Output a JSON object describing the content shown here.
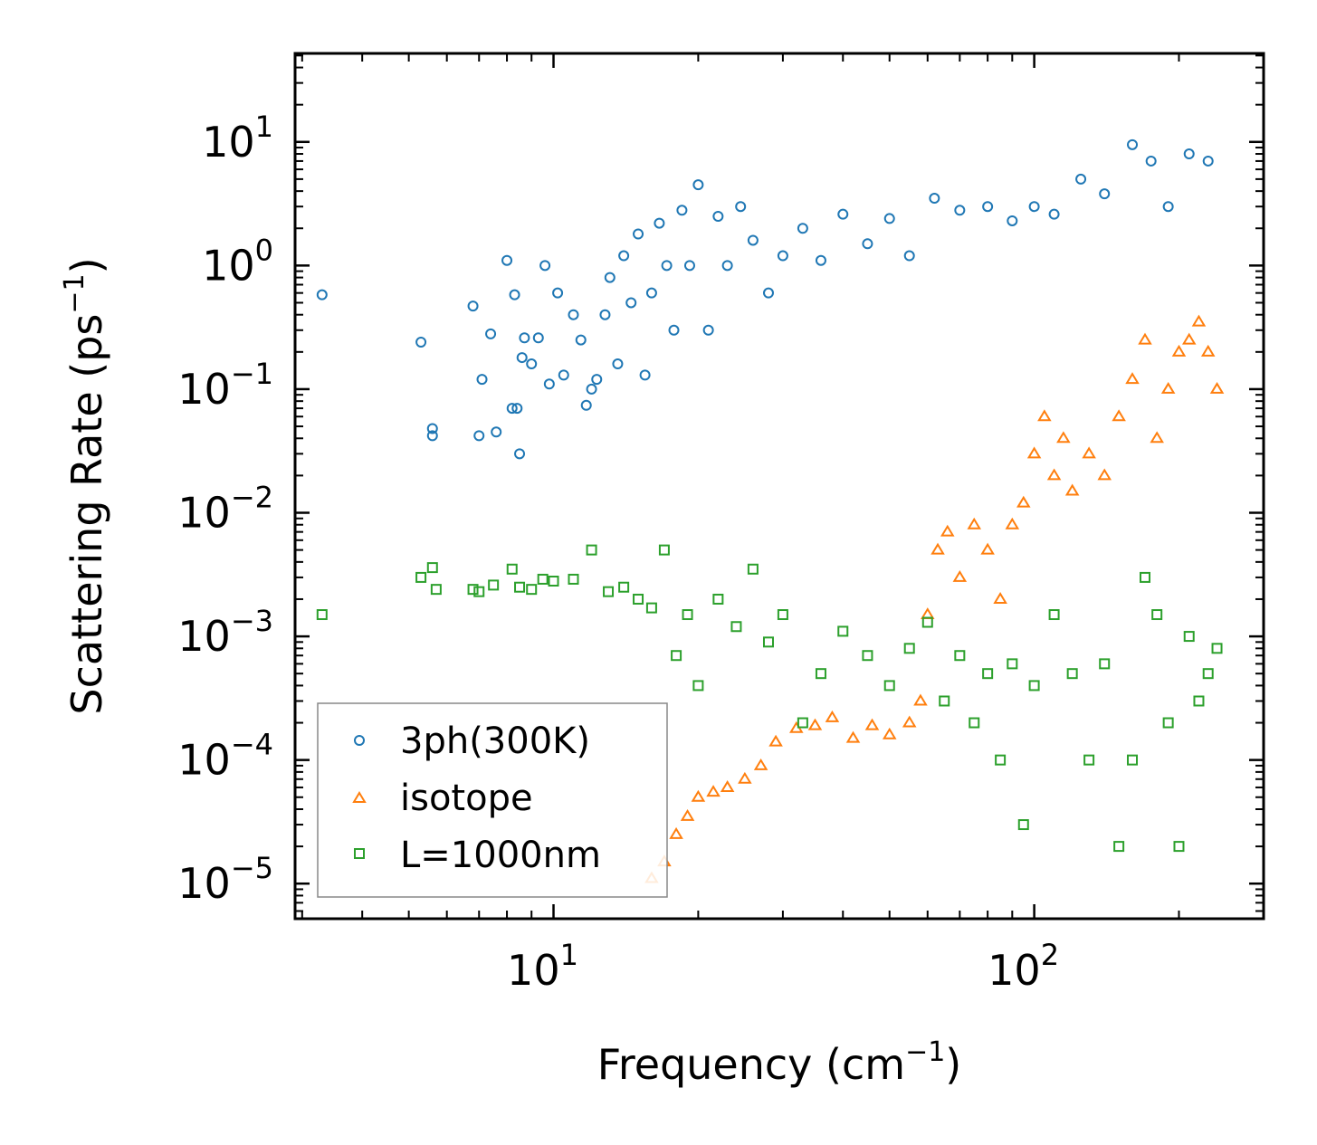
{
  "chart_data": {
    "type": "scatter",
    "title": "",
    "xlabel": {
      "base": "Frequency (cm",
      "sup": "−1",
      "tail": ")"
    },
    "ylabel": {
      "base": "Scattering Rate (ps",
      "sup": "−1",
      "tail": ")"
    },
    "xscale": "log",
    "yscale": "log",
    "xlim": [
      2.9,
      300
    ],
    "ylim": [
      5.2e-06,
      52
    ],
    "x_ticks": [
      {
        "value": 10,
        "base": "10",
        "exp": "1"
      },
      {
        "value": 100,
        "base": "10",
        "exp": "2"
      }
    ],
    "y_ticks": [
      {
        "value": 1e-05,
        "base": "10",
        "exp": "−5"
      },
      {
        "value": 0.0001,
        "base": "10",
        "exp": "−4"
      },
      {
        "value": 0.001,
        "base": "10",
        "exp": "−3"
      },
      {
        "value": 0.01,
        "base": "10",
        "exp": "−2"
      },
      {
        "value": 0.1,
        "base": "10",
        "exp": "−1"
      },
      {
        "value": 1,
        "base": "10",
        "exp": "0"
      },
      {
        "value": 10,
        "base": "10",
        "exp": "1"
      }
    ],
    "grid": false,
    "legend_position": "bottom-left",
    "series": [
      {
        "name": "3ph(300K)",
        "marker": "circle",
        "color": "#1f77b4",
        "x": [
          3.3,
          5.3,
          5.6,
          5.6,
          6.8,
          7.0,
          7.1,
          7.4,
          7.6,
          8.0,
          8.2,
          8.3,
          8.4,
          8.5,
          8.6,
          8.7,
          9.0,
          9.3,
          9.6,
          9.8,
          10.2,
          10.5,
          11.0,
          11.4,
          11.7,
          12.0,
          12.3,
          12.8,
          13.1,
          13.6,
          14.0,
          14.5,
          15.0,
          15.5,
          16.0,
          16.6,
          17.2,
          17.8,
          18.5,
          19.2,
          20.0,
          21.0,
          22.0,
          23.0,
          24.5,
          26.0,
          28.0,
          30.0,
          33.0,
          36.0,
          40.0,
          45.0,
          50.0,
          55.0,
          62.0,
          70.0,
          80.0,
          90.0,
          100.0,
          110.0,
          125.0,
          140.0,
          160.0,
          175.0,
          190.0,
          210.0,
          230.0
        ],
        "y": [
          0.58,
          0.24,
          0.048,
          0.042,
          0.47,
          0.042,
          0.12,
          0.28,
          0.045,
          1.1,
          0.07,
          0.58,
          0.07,
          0.03,
          0.18,
          0.26,
          0.16,
          0.26,
          1.0,
          0.11,
          0.6,
          0.13,
          0.4,
          0.25,
          0.074,
          0.1,
          0.12,
          0.4,
          0.8,
          0.16,
          1.2,
          0.5,
          1.8,
          0.13,
          0.6,
          2.2,
          1.0,
          0.3,
          2.8,
          1.0,
          4.5,
          0.3,
          2.5,
          1.0,
          3.0,
          1.6,
          0.6,
          1.2,
          2.0,
          1.1,
          2.6,
          1.5,
          2.4,
          1.2,
          3.5,
          2.8,
          3.0,
          2.3,
          3.0,
          2.6,
          5.0,
          3.8,
          9.5,
          7.0,
          3.0,
          8.0,
          7.0
        ]
      },
      {
        "name": "isotope",
        "marker": "triangle",
        "color": "#ff7f0e",
        "x": [
          16.0,
          17.0,
          18.0,
          19.0,
          20.0,
          21.5,
          23.0,
          25.0,
          27.0,
          29.0,
          32.0,
          35.0,
          38.0,
          42.0,
          46.0,
          50.0,
          55.0,
          58.0,
          60.0,
          63.0,
          66.0,
          70.0,
          75.0,
          80.0,
          85.0,
          90.0,
          95.0,
          100.0,
          105.0,
          110.0,
          115.0,
          120.0,
          130.0,
          140.0,
          150.0,
          160.0,
          170.0,
          180.0,
          190.0,
          200.0,
          210.0,
          220.0,
          230.0,
          240.0
        ],
        "y": [
          1.1e-05,
          1.5e-05,
          2.5e-05,
          3.5e-05,
          5e-05,
          5.5e-05,
          6e-05,
          7e-05,
          9e-05,
          0.00014,
          0.00018,
          0.00019,
          0.00022,
          0.00015,
          0.00019,
          0.00016,
          0.0002,
          0.0003,
          0.0015,
          0.005,
          0.007,
          0.003,
          0.008,
          0.005,
          0.002,
          0.008,
          0.012,
          0.03,
          0.06,
          0.02,
          0.04,
          0.015,
          0.03,
          0.02,
          0.06,
          0.12,
          0.25,
          0.04,
          0.1,
          0.2,
          0.25,
          0.35,
          0.2,
          0.1
        ]
      },
      {
        "name": "L=1000nm",
        "marker": "square",
        "color": "#2ca02c",
        "x": [
          3.3,
          5.3,
          5.6,
          5.7,
          6.8,
          7.0,
          7.5,
          8.2,
          8.5,
          9.0,
          9.5,
          10.0,
          11.0,
          12.0,
          13.0,
          14.0,
          15.0,
          16.0,
          17.0,
          18.0,
          19.0,
          20.0,
          22.0,
          24.0,
          26.0,
          28.0,
          30.0,
          33.0,
          36.0,
          40.0,
          45.0,
          50.0,
          55.0,
          60.0,
          65.0,
          70.0,
          75.0,
          80.0,
          85.0,
          90.0,
          95.0,
          100.0,
          110.0,
          120.0,
          130.0,
          140.0,
          150.0,
          160.0,
          170.0,
          180.0,
          190.0,
          200.0,
          210.0,
          220.0,
          230.0,
          240.0
        ],
        "y": [
          0.0015,
          0.003,
          0.0036,
          0.0024,
          0.0024,
          0.0023,
          0.0026,
          0.0035,
          0.0025,
          0.0024,
          0.0029,
          0.0028,
          0.0029,
          0.005,
          0.0023,
          0.0025,
          0.002,
          0.0017,
          0.005,
          0.0007,
          0.0015,
          0.0004,
          0.002,
          0.0012,
          0.0035,
          0.0009,
          0.0015,
          0.0002,
          0.0005,
          0.0011,
          0.0007,
          0.0004,
          0.0008,
          0.0013,
          0.0003,
          0.0007,
          0.0002,
          0.0005,
          0.0001,
          0.0006,
          3e-05,
          0.0004,
          0.0015,
          0.0005,
          0.0001,
          0.0006,
          2e-05,
          0.0001,
          0.003,
          0.0015,
          0.0002,
          2e-05,
          0.001,
          0.0003,
          0.0005,
          0.0008
        ]
      }
    ]
  }
}
